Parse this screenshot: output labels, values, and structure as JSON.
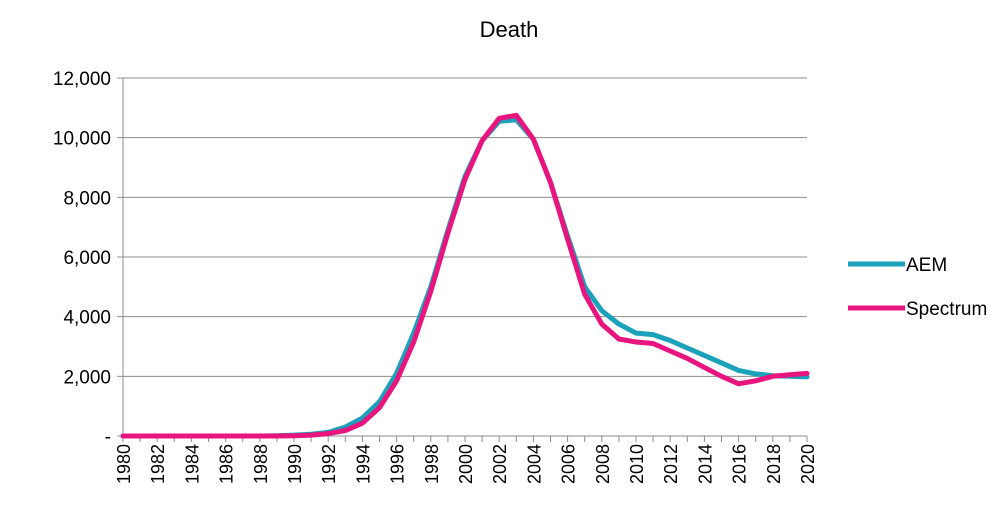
{
  "chart_data": {
    "type": "line",
    "title": "Death",
    "xlabel": "",
    "ylabel": "",
    "x": [
      1980,
      1981,
      1982,
      1983,
      1984,
      1985,
      1986,
      1987,
      1988,
      1989,
      1990,
      1991,
      1992,
      1993,
      1994,
      1995,
      1996,
      1997,
      1998,
      1999,
      2000,
      2001,
      2002,
      2003,
      2004,
      2005,
      2006,
      2007,
      2008,
      2009,
      2010,
      2011,
      2012,
      2013,
      2014,
      2015,
      2016,
      2017,
      2018,
      2019,
      2020
    ],
    "x_tick_labels": [
      "1980",
      "1982",
      "1984",
      "1986",
      "1988",
      "1990",
      "1992",
      "1994",
      "1996",
      "1998",
      "2000",
      "2002",
      "2004",
      "2006",
      "2008",
      "2010",
      "2012",
      "2014",
      "2016",
      "2018",
      "2020"
    ],
    "y_tick_labels": [
      "-",
      "2,000",
      "4,000",
      "6,000",
      "8,000",
      "10,000",
      "12,000"
    ],
    "ylim": [
      0,
      12000
    ],
    "grid": true,
    "legend_position": "right",
    "series": [
      {
        "name": "AEM",
        "color": "#1ba1b9",
        "values": [
          0,
          0,
          0,
          0,
          0,
          0,
          0,
          0,
          0,
          10,
          30,
          60,
          120,
          300,
          600,
          1150,
          2100,
          3450,
          5000,
          6900,
          8700,
          9900,
          10550,
          10600,
          9950,
          8500,
          6700,
          5000,
          4200,
          3750,
          3450,
          3400,
          3200,
          2950,
          2700,
          2450,
          2200,
          2080,
          2020,
          2000,
          1980
        ]
      },
      {
        "name": "Spectrum",
        "color": "#e8157f",
        "values": [
          0,
          0,
          0,
          0,
          0,
          0,
          0,
          0,
          0,
          0,
          10,
          30,
          80,
          180,
          430,
          950,
          1850,
          3150,
          4850,
          6800,
          8600,
          9900,
          10650,
          10750,
          9950,
          8500,
          6600,
          4750,
          3750,
          3250,
          3150,
          3100,
          2850,
          2600,
          2300,
          2000,
          1750,
          1850,
          2000,
          2050,
          2100
        ]
      }
    ]
  }
}
